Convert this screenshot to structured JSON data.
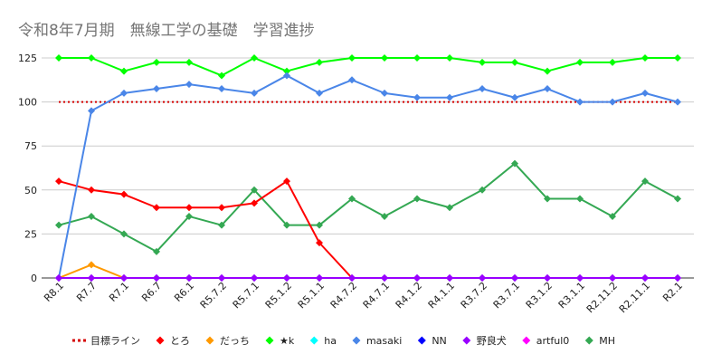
{
  "chart_data": {
    "type": "line",
    "title": "令和8年7月期　無線工学の基礎　学習進捗",
    "xlabel": "",
    "ylabel": "",
    "ylim": [
      0,
      125
    ],
    "yticks": [
      0,
      25,
      50,
      75,
      100,
      125
    ],
    "grid": true,
    "legend_position": "bottom",
    "categories": [
      "R8.1",
      "R7.7",
      "R7.1",
      "R6.7",
      "R6.1",
      "R5.7.2",
      "R5.7.1",
      "R5.1.2",
      "R5.1.1",
      "R4.7.2",
      "R4.7.1",
      "R4.1.2",
      "R4.1.1",
      "R3.7.2",
      "R3.7.1",
      "R3.1.2",
      "R3.1.1",
      "R2.11.2",
      "R2.11.1",
      "R2.1"
    ],
    "series": [
      {
        "name": "目標ライン",
        "color": "#d50000",
        "style": "dotted",
        "marker": "none",
        "values": [
          100,
          100,
          100,
          100,
          100,
          100,
          100,
          100,
          100,
          100,
          100,
          100,
          100,
          100,
          100,
          100,
          100,
          100,
          100,
          100
        ]
      },
      {
        "name": "とろ",
        "color": "#ff0000",
        "style": "solid",
        "marker": "diamond",
        "values": [
          55,
          50,
          47.5,
          40,
          40,
          40,
          42.5,
          55,
          20,
          0,
          null,
          null,
          null,
          null,
          null,
          null,
          null,
          null,
          null,
          null
        ]
      },
      {
        "name": "だっち",
        "color": "#ff9900",
        "style": "solid",
        "marker": "diamond",
        "values": [
          0,
          7.5,
          0,
          null,
          null,
          null,
          null,
          null,
          null,
          null,
          null,
          null,
          null,
          null,
          null,
          null,
          null,
          null,
          null,
          null
        ]
      },
      {
        "name": "★k",
        "color": "#00ff00",
        "style": "solid",
        "marker": "diamond",
        "values": [
          125,
          125,
          117.5,
          122.5,
          122.5,
          115,
          125,
          117.5,
          122.5,
          125,
          125,
          125,
          125,
          122.5,
          122.5,
          117.5,
          122.5,
          122.5,
          125,
          125
        ]
      },
      {
        "name": "ha",
        "color": "#00ffff",
        "style": "solid",
        "marker": "diamond",
        "values": [
          0,
          0,
          0,
          0,
          0,
          0,
          0,
          0,
          0,
          0,
          0,
          0,
          0,
          0,
          0,
          0,
          0,
          0,
          0,
          0
        ]
      },
      {
        "name": "masaki",
        "color": "#4a86e8",
        "style": "solid",
        "marker": "diamond",
        "values": [
          0,
          95,
          105,
          107.5,
          110,
          107.5,
          105,
          115,
          105,
          112.5,
          105,
          102.5,
          102.5,
          107.5,
          102.5,
          107.5,
          100,
          100,
          105,
          100
        ]
      },
      {
        "name": "NN",
        "color": "#0000ff",
        "style": "solid",
        "marker": "diamond",
        "values": [
          0,
          0,
          0,
          0,
          0,
          0,
          0,
          0,
          0,
          0,
          0,
          0,
          0,
          0,
          0,
          0,
          0,
          0,
          0,
          0
        ]
      },
      {
        "name": "野良犬",
        "color": "#9900ff",
        "style": "solid",
        "marker": "diamond",
        "values": [
          0,
          0,
          0,
          0,
          0,
          0,
          0,
          0,
          0,
          0,
          0,
          0,
          0,
          0,
          0,
          0,
          0,
          0,
          0,
          0
        ]
      },
      {
        "name": "artful0",
        "color": "#ff00ff",
        "style": "solid",
        "marker": "diamond",
        "values": [
          0,
          0,
          0,
          0,
          0,
          0,
          0,
          0,
          0,
          0,
          0,
          0,
          0,
          0,
          0,
          0,
          0,
          0,
          0,
          0
        ]
      },
      {
        "name": "MH",
        "color": "#34a853",
        "style": "solid",
        "marker": "diamond",
        "values": [
          30,
          35,
          25,
          15,
          35,
          30,
          50,
          30,
          30,
          45,
          35,
          45,
          40,
          50,
          65,
          45,
          45,
          35,
          55,
          45
        ]
      }
    ]
  }
}
